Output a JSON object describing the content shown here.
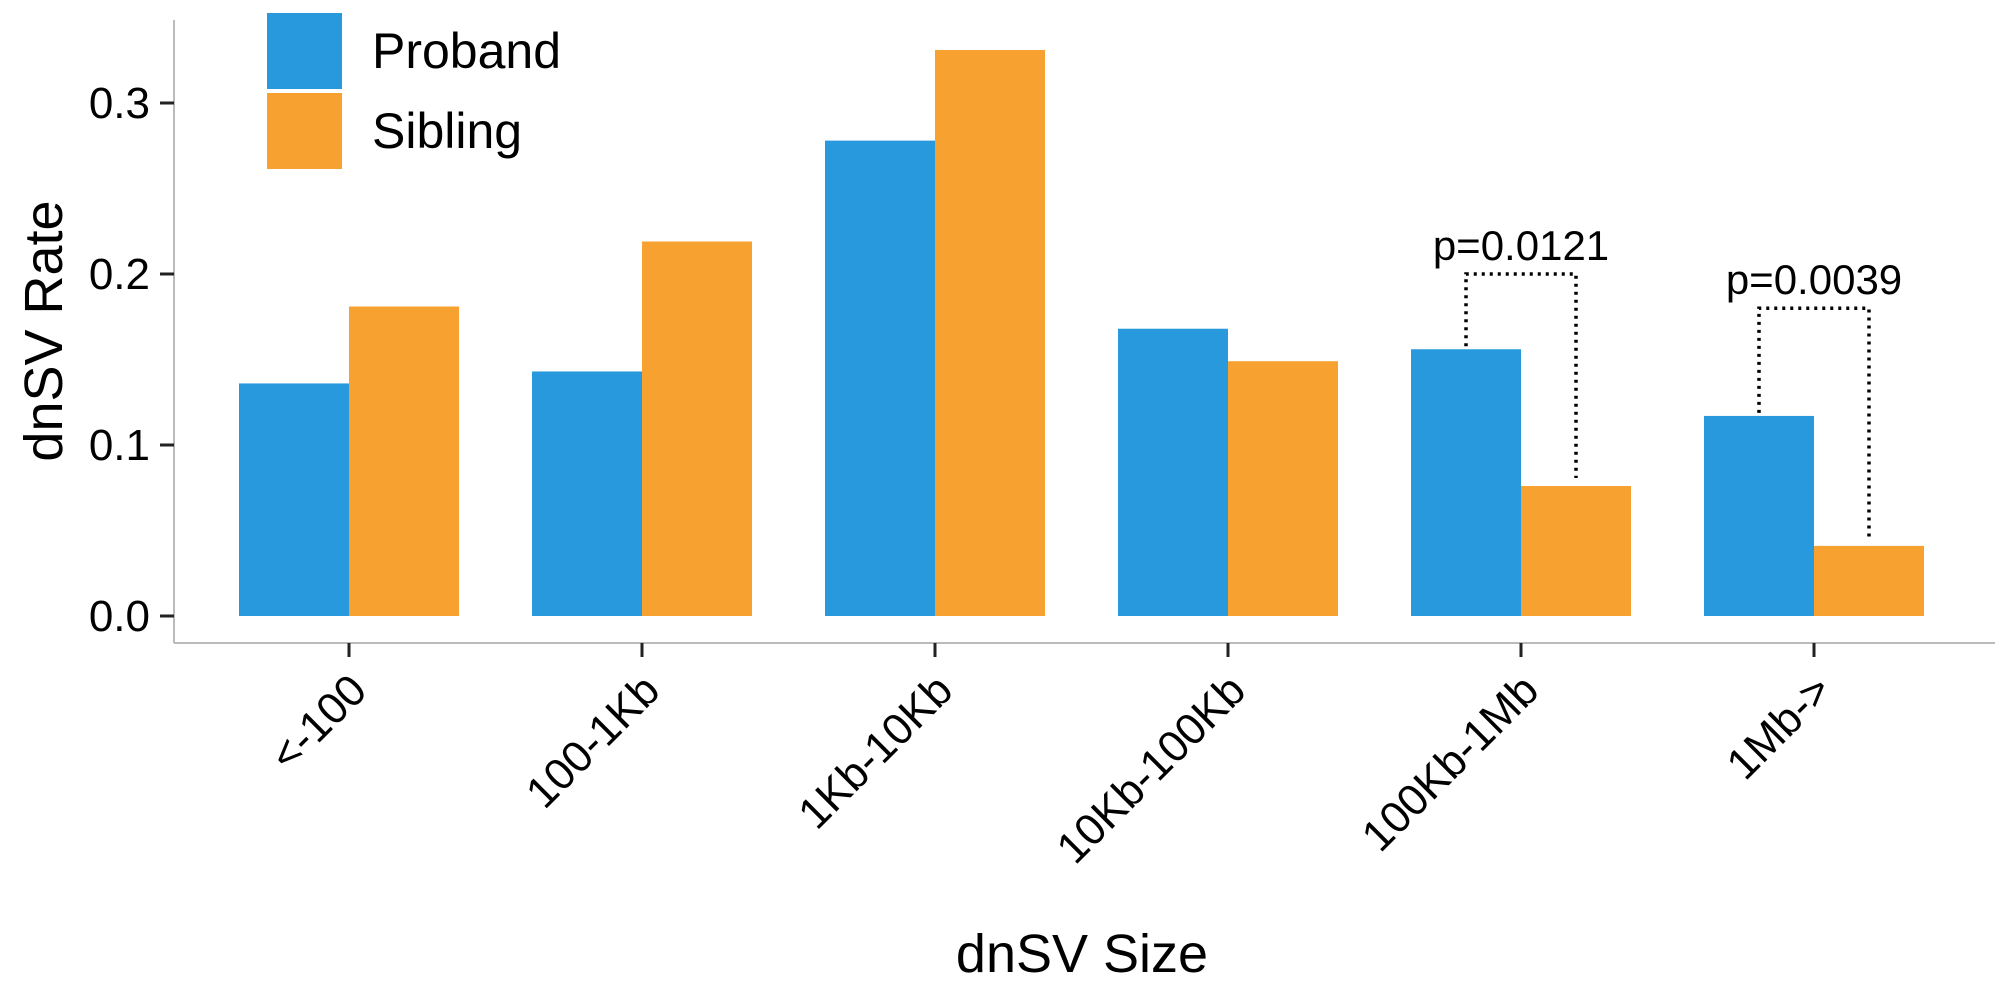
{
  "chart_data": {
    "type": "bar",
    "categories": [
      "<-100",
      "100-1Kb",
      "1Kb-10Kb",
      "10Kb-100Kb",
      "100Kb-1Mb",
      "1Mb->"
    ],
    "series": [
      {
        "name": "Proband",
        "color": "#2899dc",
        "values": [
          0.136,
          0.143,
          0.278,
          0.168,
          0.156,
          0.117
        ]
      },
      {
        "name": "Sibling",
        "color": "#f7a230",
        "values": [
          0.181,
          0.219,
          0.331,
          0.149,
          0.076,
          0.041
        ]
      }
    ],
    "xlabel": "dnSV Size",
    "ylabel": "dnSV Rate",
    "ylim": [
      0,
      0.35
    ],
    "yticks": [
      "0.0",
      "0.1",
      "0.2",
      "0.3"
    ],
    "ytick_values": [
      0,
      0.1,
      0.2,
      0.3
    ],
    "legend_position": "top-left",
    "annotations": [
      {
        "category_index": 4,
        "text": "p=0.0121",
        "bracket_top": 0.2
      },
      {
        "category_index": 5,
        "text": "p=0.0039",
        "bracket_top": 0.18
      }
    ]
  }
}
